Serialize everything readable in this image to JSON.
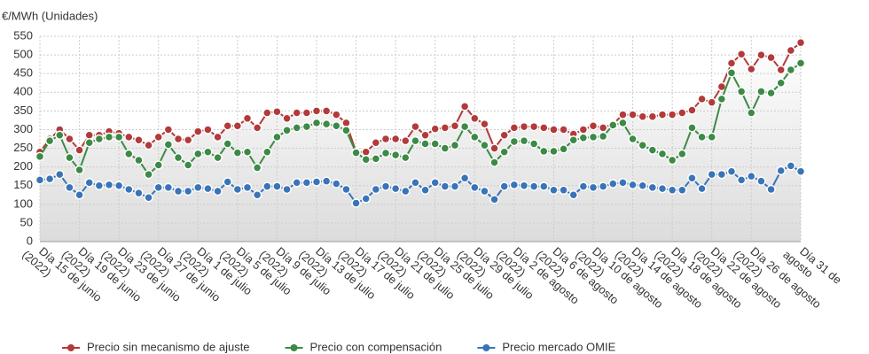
{
  "chart_data": {
    "type": "line",
    "y_label": "€/MWh (Unidades)",
    "categories": [
      "Día 15 de junio (2022)",
      null,
      null,
      null,
      "Día 19 de junio (2022)",
      null,
      null,
      null,
      "Día 23 de junio (2022)",
      null,
      null,
      null,
      "Día 27 de junio (2022)",
      null,
      null,
      null,
      "Día 1 de julio (2022)",
      null,
      null,
      null,
      "Día 5 de julio (2022)",
      null,
      null,
      null,
      "Día 9 de julio (2022)",
      null,
      null,
      null,
      "Día 13 de julio (2022)",
      null,
      null,
      null,
      "Día 17 de julio (2022)",
      null,
      null,
      null,
      "Día 21 de julio (2022)",
      null,
      null,
      null,
      "Día 25 de julio (2022)",
      null,
      null,
      null,
      "Día 29 de julio (2022)",
      null,
      null,
      null,
      "Día 2 de agosto (2022)",
      null,
      null,
      null,
      "Día 6 de agosto (2022)",
      null,
      null,
      null,
      "Día 10 de agosto (2022)",
      null,
      null,
      null,
      "Día 14 de agosto (2022)",
      null,
      null,
      null,
      "Día 18 de agosto (2022)",
      null,
      null,
      null,
      "Día 22 de agosto (2022)",
      null,
      null,
      null,
      "Día 26 de agosto (2022)",
      null,
      null,
      null,
      null,
      "Día 31 de agosto"
    ],
    "series": [
      {
        "name": "Precio sin mecanismo de ajuste",
        "color": "#b23a3a",
        "values": [
          240,
          275,
          300,
          275,
          245,
          285,
          285,
          295,
          290,
          280,
          272,
          258,
          280,
          300,
          275,
          272,
          295,
          300,
          280,
          310,
          310,
          330,
          305,
          345,
          348,
          330,
          345,
          345,
          350,
          350,
          340,
          318,
          240,
          240,
          265,
          275,
          275,
          270,
          308,
          285,
          302,
          305,
          310,
          362,
          330,
          315,
          250,
          285,
          305,
          308,
          308,
          305,
          300,
          300,
          288,
          300,
          310,
          305,
          315,
          340,
          340,
          335,
          335,
          340,
          340,
          345,
          352,
          382,
          373,
          415,
          478,
          502,
          462,
          500,
          493,
          460,
          512,
          533
        ]
      },
      {
        "name": "Precio con compensación",
        "color": "#3c8a45",
        "values": [
          228,
          270,
          285,
          225,
          192,
          265,
          275,
          280,
          280,
          235,
          218,
          180,
          205,
          260,
          225,
          205,
          235,
          240,
          225,
          262,
          238,
          240,
          198,
          240,
          280,
          298,
          305,
          308,
          318,
          315,
          310,
          298,
          238,
          220,
          222,
          237,
          232,
          225,
          270,
          262,
          262,
          250,
          258,
          308,
          280,
          258,
          212,
          240,
          268,
          270,
          262,
          242,
          242,
          248,
          272,
          278,
          280,
          282,
          312,
          318,
          275,
          258,
          245,
          235,
          218,
          235,
          305,
          280,
          280,
          382,
          452,
          402,
          345,
          402,
          398,
          425,
          460,
          478
        ]
      },
      {
        "name": "Precio mercado OMIE",
        "color": "#3a74b8",
        "values": [
          165,
          168,
          180,
          145,
          125,
          158,
          150,
          152,
          150,
          140,
          130,
          118,
          145,
          145,
          135,
          135,
          145,
          142,
          135,
          160,
          140,
          145,
          125,
          148,
          148,
          140,
          158,
          158,
          160,
          162,
          155,
          140,
          103,
          115,
          140,
          148,
          142,
          135,
          158,
          138,
          158,
          148,
          148,
          170,
          145,
          135,
          113,
          148,
          152,
          150,
          148,
          148,
          138,
          138,
          125,
          148,
          145,
          148,
          155,
          158,
          152,
          150,
          145,
          142,
          138,
          138,
          170,
          142,
          180,
          180,
          188,
          165,
          175,
          162,
          140,
          190,
          203,
          188
        ]
      }
    ],
    "ylim": [
      0,
      550
    ],
    "yticks": [
      0,
      50,
      100,
      150,
      200,
      250,
      300,
      350,
      400,
      450,
      500,
      550
    ],
    "grid": true
  }
}
